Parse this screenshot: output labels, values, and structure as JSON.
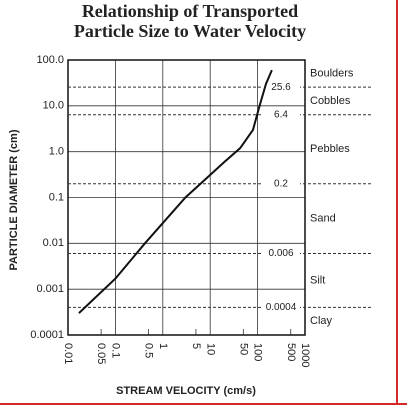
{
  "chart_data": {
    "type": "line",
    "title": [
      "Relationship of Transported",
      "Particle Size to Water Velocity"
    ],
    "x_label": "STREAM VELOCITY (cm/s)",
    "y_label": "PARTICLE DIAMETER (cm)",
    "log_x": true,
    "log_y": true,
    "grid": true,
    "xlim": [
      0.01,
      1000
    ],
    "ylim": [
      0.0001,
      100
    ],
    "xticks": [
      0.01,
      0.05,
      0.1,
      0.5,
      1,
      5,
      10,
      50,
      100,
      500,
      1000
    ],
    "yticks": [
      {
        "value": 100,
        "label": "100.0"
      },
      {
        "value": 10,
        "label": "10.0"
      },
      {
        "value": 1,
        "label": "1.0"
      },
      0.1,
      0.01,
      0.001,
      0.0001
    ],
    "series": [
      {
        "color": "#111111",
        "x": [
          0.017,
          0.1,
          0.42,
          3,
          20,
          43,
          80,
          110,
          150,
          200
        ],
        "values": [
          0.0003,
          0.0017,
          0.01,
          0.1,
          0.6,
          1.2,
          3,
          10,
          30,
          60
        ]
      }
    ],
    "boundaries": [
      25.6,
      6.4,
      0.2,
      0.006,
      0.0004
    ],
    "zones": [
      "Boulders",
      "Cobbles",
      "Pebbles",
      "Sand",
      "Silt",
      "Clay"
    ]
  }
}
